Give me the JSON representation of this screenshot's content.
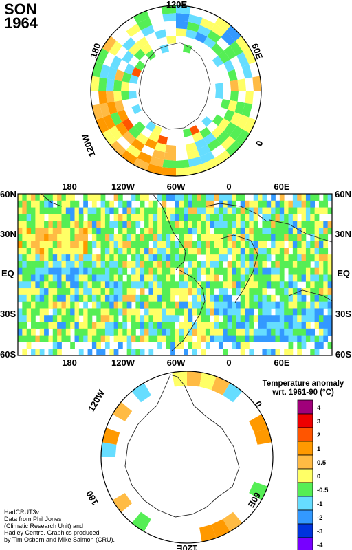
{
  "header": {
    "season": "SON",
    "year": "1964"
  },
  "north_map": {
    "labels": {
      "top": "120E",
      "right": "60E",
      "bottom": "0",
      "left_top": "180",
      "left_bottom": "120W"
    }
  },
  "world_map": {
    "top_labels": [
      "180",
      "120W",
      "60W",
      "0",
      "60E"
    ],
    "bottom_labels": [
      "180",
      "120W",
      "60W",
      "0",
      "60E"
    ],
    "lat_labels": [
      "60N",
      "30N",
      "EQ",
      "30S",
      "60S"
    ]
  },
  "south_map": {
    "labels": {
      "bottom": "120E",
      "left_top": "120W",
      "left_bottom": "180",
      "right_top": "0",
      "right_bottom": "60E"
    }
  },
  "legend": {
    "title_line1": "Temperature anomaly",
    "title_line2": "wrt. 1961-90  (°C)",
    "bins": [
      {
        "label": "4",
        "color": "#a0007a"
      },
      {
        "label": "3",
        "color": "#ee0000"
      },
      {
        "label": "2",
        "color": "#ff5500"
      },
      {
        "label": "1",
        "color": "#ff9900"
      },
      {
        "label": "0.5",
        "color": "#ffbb44"
      },
      {
        "label": "0",
        "color": "#ffff66"
      },
      {
        "label": "-0.5",
        "color": "#55ee55"
      },
      {
        "label": "-1",
        "color": "#66ddff"
      },
      {
        "label": "-2",
        "color": "#3399ff"
      },
      {
        "label": "-3",
        "color": "#0033dd"
      },
      {
        "label": "-4",
        "color": "#7700ff"
      }
    ]
  },
  "credits": [
    "HadCRUT3v",
    "Data from Phil Jones",
    "(Climatic Research Unit) and",
    "Hadley Centre.  Graphics produced",
    "by Tim Osborn and Mike Salmon (CRU)."
  ]
}
